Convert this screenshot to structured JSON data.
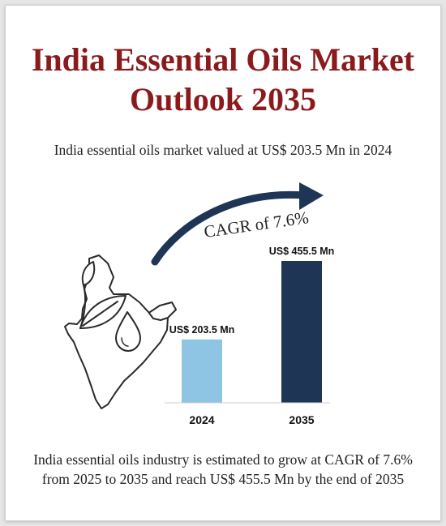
{
  "header": {
    "title_line1": "India Essential Oils Market",
    "title_line2": "Outlook 2035",
    "subtitle": "India essential oils market valued at US$ 203.5 Mn in 2024"
  },
  "cagr_label": "CAGR of 7.6%",
  "footer": {
    "line1": "India essential oils industry is estimated to grow at CAGR of 7.6%",
    "line2": "from 2025 to 2035 and reach US$ 455.5 Mn by the end of 2035"
  },
  "illustration": {
    "icon": "india-map-with-leaves-and-oil-drop-icon"
  },
  "chart_data": {
    "type": "bar",
    "categories": [
      "2024",
      "2035"
    ],
    "values": [
      203.5,
      455.5
    ],
    "value_labels": [
      "US$ 203.5 Mn",
      "US$ 455.5 Mn"
    ],
    "unit": "US$ Mn",
    "colors": [
      "#8ec4e4",
      "#1e3556"
    ],
    "grid": false,
    "legend": "none"
  },
  "colors": {
    "title": "#8b1a1c",
    "arrow": "#1e3556",
    "text": "#222222"
  }
}
